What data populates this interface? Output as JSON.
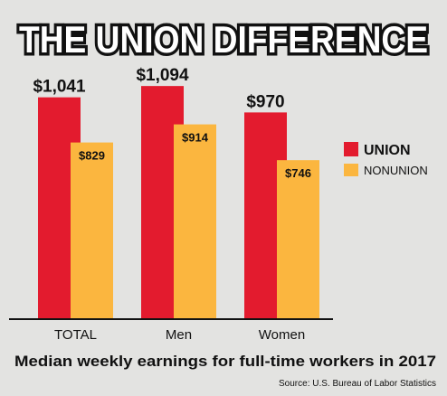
{
  "header": {
    "title": "THE UNION DIFFERENCE"
  },
  "legend": {
    "union_label": "UNION",
    "nonunion_label": "NONUNION"
  },
  "caption": {
    "subtitle": "Median weekly earnings for full-time workers in 2017",
    "source": "Source: U.S. Bureau of Labor Statistics"
  },
  "colors": {
    "union": "#e31b2e",
    "nonunion": "#fbb63f",
    "background": "#e3e3e1",
    "text": "#111111"
  },
  "chart_data": {
    "type": "bar",
    "title": "THE UNION DIFFERENCE",
    "subtitle": "Median weekly earnings for full-time workers in 2017",
    "categories": [
      "TOTAL",
      "Men",
      "Women"
    ],
    "series": [
      {
        "name": "UNION",
        "values": [
          1041,
          1094,
          970
        ],
        "labels": [
          "$1,041",
          "$1,094",
          "$970"
        ],
        "color": "#e31b2e"
      },
      {
        "name": "NONUNION",
        "values": [
          829,
          914,
          746
        ],
        "labels": [
          "$829",
          "$914",
          "$746"
        ],
        "color": "#fbb63f"
      }
    ],
    "ylim": [
      0,
      1150
    ],
    "grid": false,
    "legend_position": "right",
    "xlabel": "",
    "ylabel": ""
  }
}
